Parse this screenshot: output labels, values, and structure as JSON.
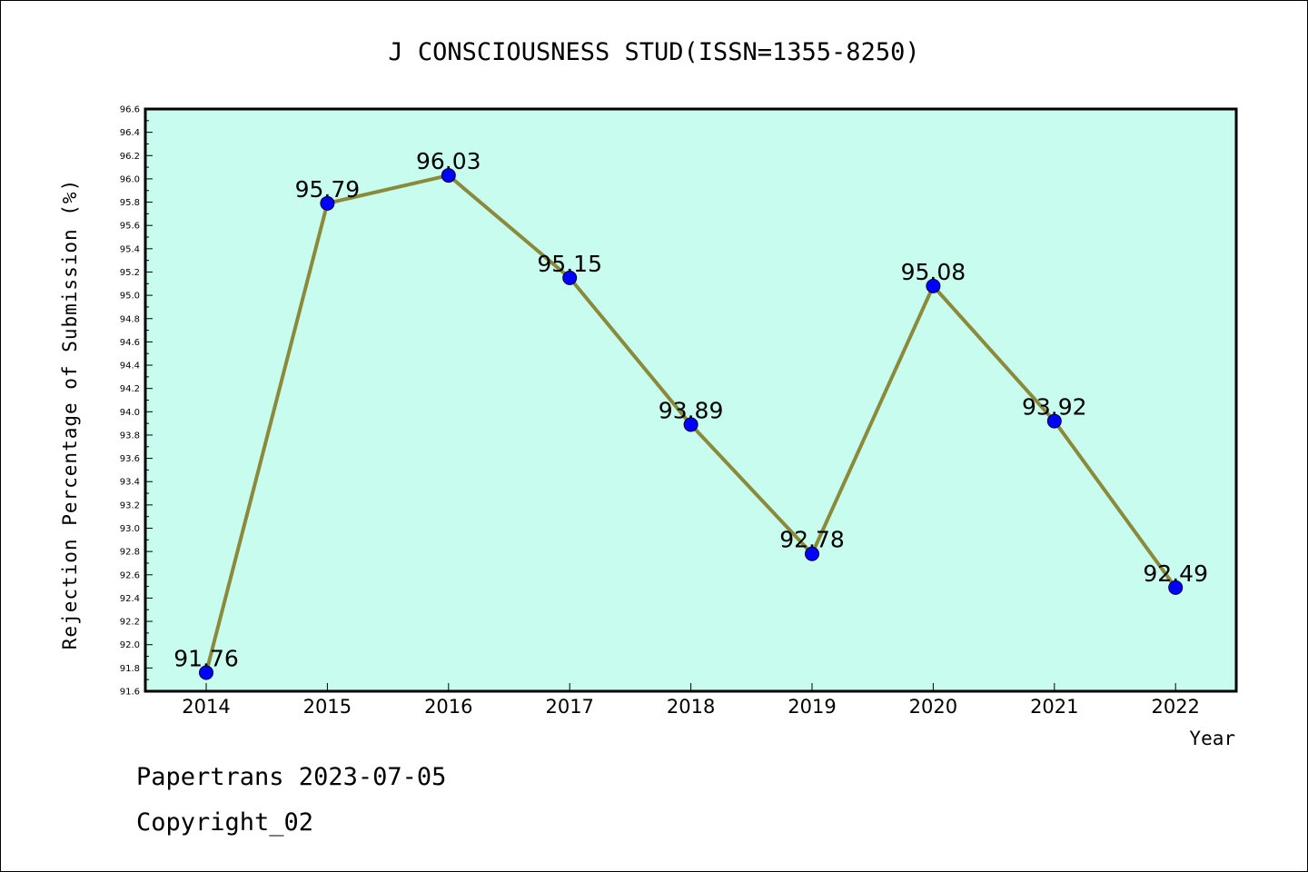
{
  "chart_data": {
    "type": "line",
    "title": "J CONSCIOUSNESS STUD(ISSN=1355-8250)",
    "xlabel": "Year",
    "ylabel": "Rejection Percentage of Submission (%)",
    "categories": [
      "2014",
      "2015",
      "2016",
      "2017",
      "2018",
      "2019",
      "2020",
      "2021",
      "2022"
    ],
    "values": [
      91.76,
      95.79,
      96.03,
      95.15,
      93.89,
      92.78,
      95.08,
      93.92,
      92.49
    ],
    "value_labels": [
      "91.76",
      "95.79",
      "96.03",
      "95.15",
      "93.89",
      "92.78",
      "95.08",
      "93.92",
      "92.49"
    ],
    "ylim": [
      91.6,
      96.6
    ],
    "yticks": [
      "91.6",
      "91.8",
      "92.0",
      "92.2",
      "92.4",
      "92.6",
      "92.8",
      "93.0",
      "93.2",
      "93.4",
      "93.6",
      "93.8",
      "94.0",
      "94.2",
      "94.4",
      "94.6",
      "94.8",
      "95.0",
      "95.2",
      "95.4",
      "95.6",
      "95.8",
      "96.0",
      "96.2",
      "96.4",
      "96.6"
    ],
    "grid": false,
    "colors": {
      "plot_bg": "#c8fcee",
      "line": "#8b8a3a",
      "marker": "#0000ff"
    }
  },
  "footer": {
    "line1": "Papertrans 2023-07-05",
    "line2": "Copyright_02"
  }
}
